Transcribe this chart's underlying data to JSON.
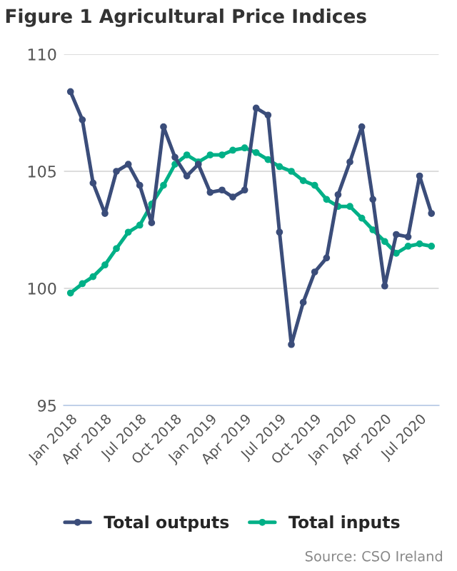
{
  "chart_data": {
    "type": "line",
    "title": "Figure 1 Agricultural Price Indices",
    "x": [
      "2018-01",
      "2018-02",
      "2018-03",
      "2018-04",
      "2018-05",
      "2018-06",
      "2018-07",
      "2018-08",
      "2018-09",
      "2018-10",
      "2018-11",
      "2018-12",
      "2019-01",
      "2019-02",
      "2019-03",
      "2019-04",
      "2019-05",
      "2019-06",
      "2019-07",
      "2019-08",
      "2019-09",
      "2019-10",
      "2019-11",
      "2019-12",
      "2020-01",
      "2020-02",
      "2020-03",
      "2020-04",
      "2020-05",
      "2020-06",
      "2020-07",
      "2020-08"
    ],
    "series": [
      {
        "name": "Total outputs",
        "color": "#3b4d7a",
        "values": [
          108.4,
          107.2,
          104.5,
          103.2,
          105.0,
          105.3,
          104.4,
          102.8,
          106.9,
          105.6,
          104.8,
          105.3,
          104.1,
          104.2,
          103.9,
          104.2,
          107.7,
          107.4,
          102.4,
          97.6,
          99.4,
          100.7,
          101.3,
          104.0,
          105.4,
          106.9,
          103.8,
          100.1,
          102.3,
          102.2,
          104.8,
          103.2
        ]
      },
      {
        "name": "Total inputs",
        "color": "#00b087",
        "values": [
          99.8,
          100.2,
          100.5,
          101.0,
          101.7,
          102.4,
          102.7,
          103.6,
          104.4,
          105.3,
          105.7,
          105.4,
          105.7,
          105.7,
          105.9,
          106.0,
          105.8,
          105.5,
          105.2,
          105.0,
          104.6,
          104.4,
          103.8,
          103.5,
          103.5,
          103.0,
          102.5,
          102.0,
          101.5,
          101.8,
          101.9,
          101.8
        ]
      }
    ],
    "ylim": [
      95,
      110
    ],
    "yticks": [
      95,
      100,
      105,
      110
    ],
    "xticks": [
      {
        "value": "2018-01",
        "label": "Jan 2018"
      },
      {
        "value": "2018-04",
        "label": "Apr 2018"
      },
      {
        "value": "2018-07",
        "label": "Jul 2018"
      },
      {
        "value": "2018-10",
        "label": "Oct 2018"
      },
      {
        "value": "2019-01",
        "label": "Jan 2019"
      },
      {
        "value": "2019-04",
        "label": "Apr 2019"
      },
      {
        "value": "2019-07",
        "label": "Jul 2019"
      },
      {
        "value": "2019-10",
        "label": "Oct 2019"
      },
      {
        "value": "2020-01",
        "label": "Jan 2020"
      },
      {
        "value": "2020-04",
        "label": "Apr 2020"
      },
      {
        "value": "2020-07",
        "label": "Jul 2020"
      }
    ],
    "xlim": [
      "2017-12-15",
      "2020-08-20"
    ],
    "grid": "y",
    "legend": "bottom",
    "marker": "circle",
    "line_style": "solid",
    "annotations": [
      "Source: CSO Ireland"
    ]
  }
}
